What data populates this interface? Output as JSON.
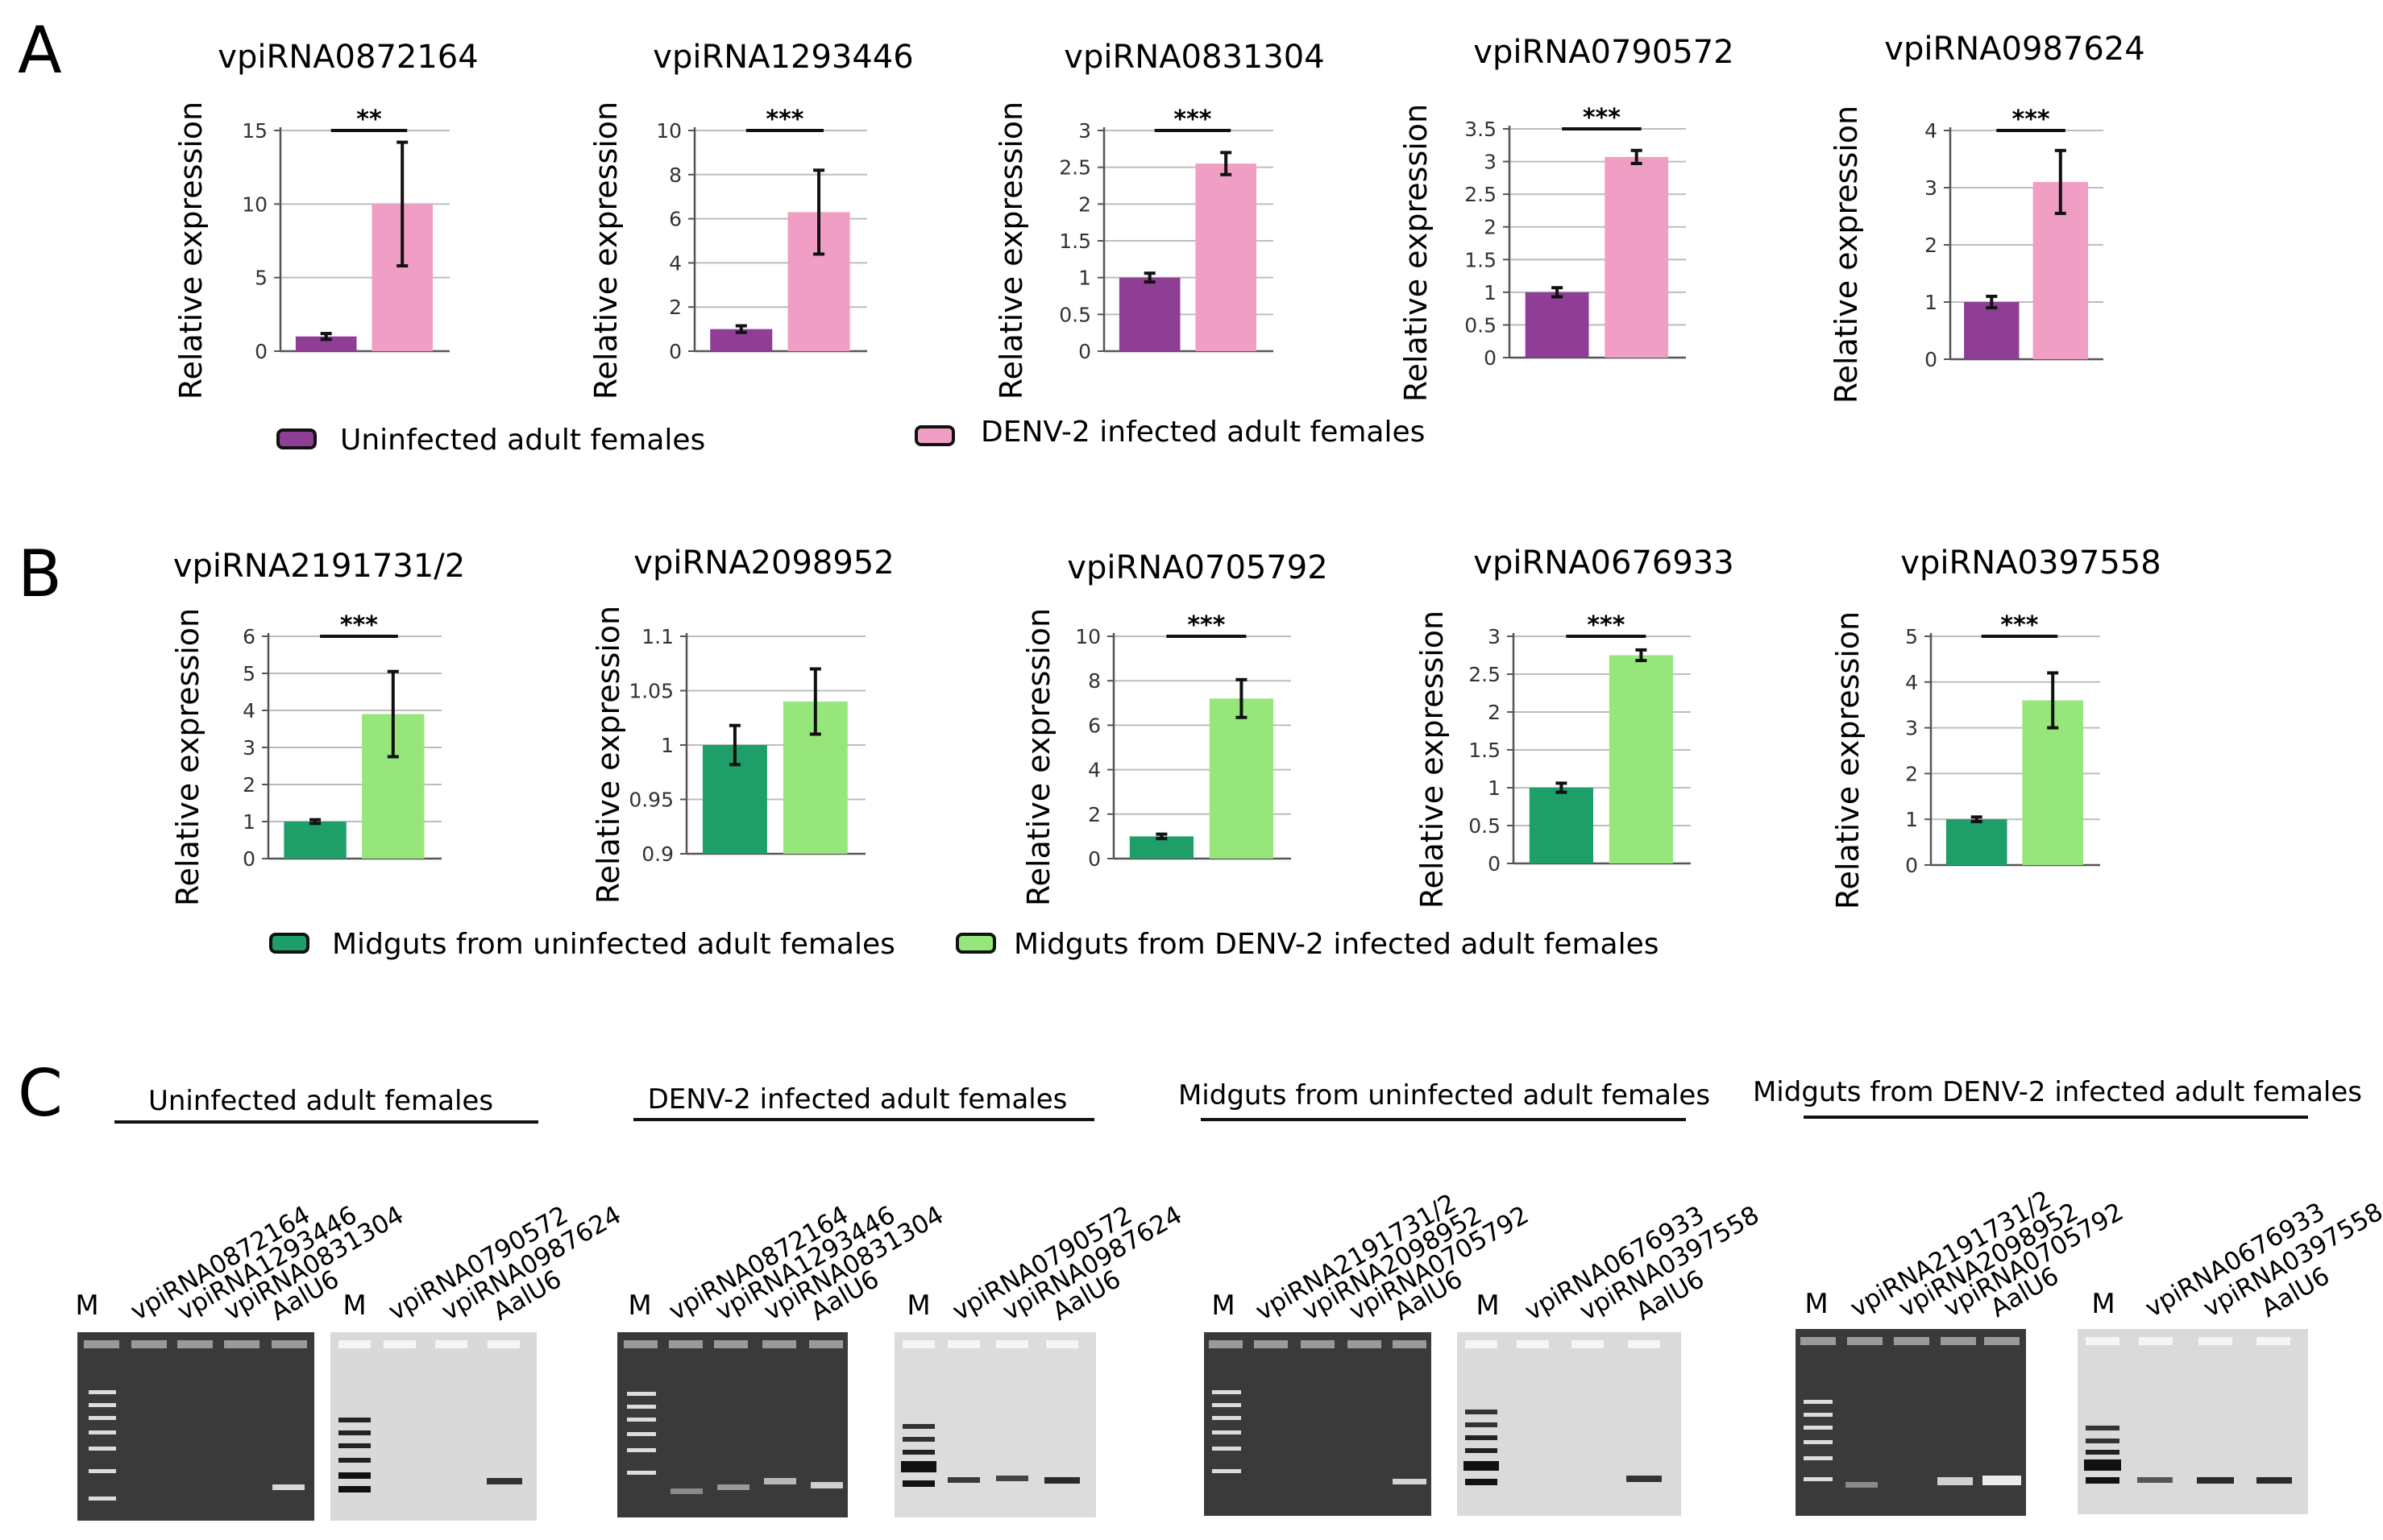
{
  "panels": {
    "A": {
      "letter": "A",
      "legend": [
        {
          "label": "Uninfected adult females",
          "color": "#8e3f95"
        },
        {
          "label": "DENV-2 infected  adult females",
          "color": "#f19ec4"
        }
      ]
    },
    "B": {
      "letter": "B",
      "legend": [
        {
          "label": "Midguts from uninfected adult females",
          "color": "#1e9e68"
        },
        {
          "label": "Midguts from DENV-2 infected adult females",
          "color": "#96e67c"
        }
      ]
    },
    "C": {
      "letter": "C",
      "groups": [
        {
          "title": "Uninfected adult females",
          "gels": [
            {
              "marker": "M",
              "lanes": [
                "vpiRNA0872164",
                "vpiRNA1293446",
                "vpiRNA0831304",
                "AalU6"
              ]
            },
            {
              "marker": "M",
              "lanes": [
                "vpiRNA0790572",
                "vpiRNA0987624",
                "AalU6"
              ]
            }
          ]
        },
        {
          "title": "DENV-2 infected adult females",
          "gels": [
            {
              "marker": "M",
              "lanes": [
                "vpiRNA0872164",
                "vpiRNA1293446",
                "vpiRNA0831304",
                "AalU6"
              ]
            },
            {
              "marker": "M",
              "lanes": [
                "vpiRNA0790572",
                "vpiRNA0987624",
                "AalU6"
              ]
            }
          ]
        },
        {
          "title": "Midguts from uninfected adult females",
          "gels": [
            {
              "marker": "M",
              "lanes": [
                "vpiRNA2191731/2",
                "vpiRNA2098952",
                "vpiRNA0705792",
                "AalU6"
              ]
            },
            {
              "marker": "M",
              "lanes": [
                "vpiRNA0676933",
                "vpiRNA0397558",
                "AalU6"
              ]
            }
          ]
        },
        {
          "title": "Midguts from DENV-2  infected  adult females",
          "gels": [
            {
              "marker": "M",
              "lanes": [
                "vpiRNA2191731/2",
                "vpiRNA2098952",
                "vpiRNA0705792",
                "AalU6"
              ]
            },
            {
              "marker": "M",
              "lanes": [
                "vpiRNA0676933",
                "vpiRNA0397558",
                "AalU6"
              ]
            }
          ]
        }
      ]
    }
  },
  "chart_data": [
    {
      "type": "bar",
      "panel": "A",
      "title": "vpiRNA0872164",
      "ylabel": "Relative expression",
      "categories": [
        "Uninfected adult females",
        "DENV-2 infected  adult females"
      ],
      "values": [
        1,
        10
      ],
      "errors": [
        0.2,
        4.2
      ],
      "ylim": [
        0,
        15
      ],
      "yticks": [
        "0",
        "5",
        "10",
        "15"
      ],
      "significance": "**",
      "colors": [
        "#8e3f95",
        "#f19ec4"
      ]
    },
    {
      "type": "bar",
      "panel": "A",
      "title": "vpiRNA1293446",
      "ylabel": "Relative expression",
      "categories": [
        "Uninfected adult females",
        "DENV-2 infected  adult females"
      ],
      "values": [
        1,
        6.3
      ],
      "errors": [
        0.15,
        1.9
      ],
      "ylim": [
        0,
        10
      ],
      "yticks": [
        "0",
        "2",
        "4",
        "6",
        "8",
        "10"
      ],
      "significance": "***",
      "colors": [
        "#8e3f95",
        "#f19ec4"
      ]
    },
    {
      "type": "bar",
      "panel": "A",
      "title": "vpiRNA0831304",
      "ylabel": "Relative expression",
      "categories": [
        "Uninfected adult females",
        "DENV-2 infected  adult females"
      ],
      "values": [
        1,
        2.55
      ],
      "errors": [
        0.06,
        0.15
      ],
      "ylim": [
        0,
        3
      ],
      "yticks": [
        "0",
        "0.5",
        "1",
        "1.5",
        "2",
        "2.5",
        "3"
      ],
      "significance": "***",
      "colors": [
        "#8e3f95",
        "#f19ec4"
      ]
    },
    {
      "type": "bar",
      "panel": "A",
      "title": "vpiRNA0790572",
      "ylabel": "Relative expression",
      "categories": [
        "Uninfected adult females",
        "DENV-2 infected  adult females"
      ],
      "values": [
        1,
        3.07
      ],
      "errors": [
        0.07,
        0.1
      ],
      "ylim": [
        0,
        3.5
      ],
      "yticks": [
        "0",
        "0.5",
        "1",
        "1.5",
        "2",
        "2.5",
        "3",
        "3.5"
      ],
      "significance": "***",
      "colors": [
        "#8e3f95",
        "#f19ec4"
      ]
    },
    {
      "type": "bar",
      "panel": "A",
      "title": "vpiRNA0987624",
      "ylabel": "Relative expression",
      "categories": [
        "Uninfected adult females",
        "DENV-2 infected  adult females"
      ],
      "values": [
        1,
        3.1
      ],
      "errors": [
        0.1,
        0.55
      ],
      "ylim": [
        0,
        4
      ],
      "yticks": [
        "0",
        "1",
        "2",
        "3",
        "4"
      ],
      "significance": "***",
      "colors": [
        "#8e3f95",
        "#f19ec4"
      ]
    },
    {
      "type": "bar",
      "panel": "B",
      "title": "vpiRNA2191731/2",
      "ylabel": "Relative expression",
      "categories": [
        "Midguts from uninfected adult females",
        "Midguts from DENV-2 infected adult females"
      ],
      "values": [
        1,
        3.9
      ],
      "errors": [
        0.05,
        1.15
      ],
      "ylim": [
        0,
        6
      ],
      "yticks": [
        "0",
        "1",
        "2",
        "3",
        "4",
        "5",
        "6"
      ],
      "significance": "***",
      "colors": [
        "#1e9e68",
        "#96e67c"
      ]
    },
    {
      "type": "bar",
      "panel": "B",
      "title": "vpiRNA2098952",
      "ylabel": "Relative expression",
      "categories": [
        "Midguts from uninfected adult females",
        "Midguts from DENV-2 infected adult females"
      ],
      "values": [
        1,
        1.04
      ],
      "errors": [
        0.018,
        0.03
      ],
      "ylim": [
        0.9,
        1.1
      ],
      "yticks": [
        "0.9",
        "0.95",
        "1",
        "1.05",
        "1.1"
      ],
      "significance": "",
      "colors": [
        "#1e9e68",
        "#96e67c"
      ]
    },
    {
      "type": "bar",
      "panel": "B",
      "title": "vpiRNA0705792",
      "ylabel": "Relative expression",
      "categories": [
        "Midguts from uninfected adult females",
        "Midguts from DENV-2 infected adult females"
      ],
      "values": [
        1,
        7.2
      ],
      "errors": [
        0.1,
        0.85
      ],
      "ylim": [
        0,
        10
      ],
      "yticks": [
        "0",
        "2",
        "4",
        "6",
        "8",
        "10"
      ],
      "significance": "***",
      "colors": [
        "#1e9e68",
        "#96e67c"
      ]
    },
    {
      "type": "bar",
      "panel": "B",
      "title": "vpiRNA0676933",
      "ylabel": "Relative expression",
      "categories": [
        "Midguts from uninfected adult females",
        "Midguts from DENV-2 infected adult females"
      ],
      "values": [
        1,
        2.75
      ],
      "errors": [
        0.06,
        0.07
      ],
      "ylim": [
        0,
        3
      ],
      "yticks": [
        "0",
        "0.5",
        "1",
        "1.5",
        "2",
        "2.5",
        "3"
      ],
      "significance": "***",
      "colors": [
        "#1e9e68",
        "#96e67c"
      ]
    },
    {
      "type": "bar",
      "panel": "B",
      "title": "vpiRNA0397558",
      "ylabel": "Relative expression",
      "categories": [
        "Midguts from uninfected adult females",
        "Midguts from DENV-2 infected adult females"
      ],
      "values": [
        1,
        3.6
      ],
      "errors": [
        0.05,
        0.6
      ],
      "ylim": [
        0,
        5
      ],
      "yticks": [
        "0",
        "1",
        "2",
        "3",
        "4",
        "5"
      ],
      "significance": "***",
      "colors": [
        "#1e9e68",
        "#96e67c"
      ]
    }
  ]
}
